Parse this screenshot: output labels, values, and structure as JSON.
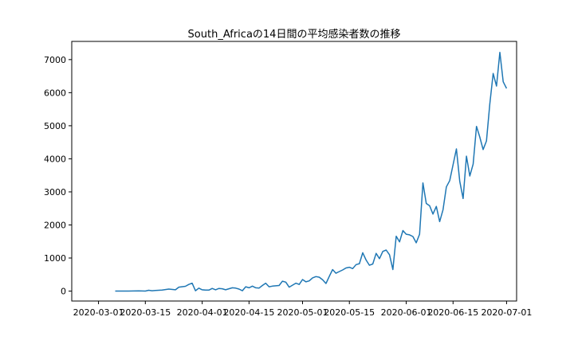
{
  "chart_data": {
    "type": "line",
    "title": "South_Africaの14日間の平均感染者数の推移",
    "xlabel": "",
    "ylabel": "",
    "x_tick_labels": [
      "2020-03-01",
      "2020-03-15",
      "2020-04-01",
      "2020-04-15",
      "2020-05-01",
      "2020-05-15",
      "2020-06-01",
      "2020-06-15",
      "2020-07-01"
    ],
    "y_ticks": [
      0,
      1000,
      2000,
      3000,
      4000,
      5000,
      6000,
      7000
    ],
    "y_tick_labels": [
      "0",
      "1000",
      "2000",
      "3000",
      "4000",
      "5000",
      "6000",
      "7000"
    ],
    "xlim": [
      "2020-02-22",
      "2020-07-04"
    ],
    "ylim": [
      -300,
      7550
    ],
    "grid": false,
    "series": [
      {
        "color": "#1f77b4",
        "points": [
          [
            "2020-03-06",
            0
          ],
          [
            "2020-03-10",
            2
          ],
          [
            "2020-03-13",
            5
          ],
          [
            "2020-03-15",
            0
          ],
          [
            "2020-03-16",
            25
          ],
          [
            "2020-03-17",
            10
          ],
          [
            "2020-03-18",
            20
          ],
          [
            "2020-03-20",
            30
          ],
          [
            "2020-03-22",
            60
          ],
          [
            "2020-03-24",
            40
          ],
          [
            "2020-03-25",
            120
          ],
          [
            "2020-03-27",
            145
          ],
          [
            "2020-03-28",
            200
          ],
          [
            "2020-03-29",
            240
          ],
          [
            "2020-03-30",
            10
          ],
          [
            "2020-03-31",
            90
          ],
          [
            "2020-04-01",
            40
          ],
          [
            "2020-04-02",
            30
          ],
          [
            "2020-04-03",
            30
          ],
          [
            "2020-04-04",
            80
          ],
          [
            "2020-04-05",
            40
          ],
          [
            "2020-04-06",
            80
          ],
          [
            "2020-04-07",
            70
          ],
          [
            "2020-04-08",
            40
          ],
          [
            "2020-04-09",
            70
          ],
          [
            "2020-04-10",
            100
          ],
          [
            "2020-04-11",
            90
          ],
          [
            "2020-04-12",
            60
          ],
          [
            "2020-04-13",
            10
          ],
          [
            "2020-04-14",
            130
          ],
          [
            "2020-04-15",
            100
          ],
          [
            "2020-04-16",
            150
          ],
          [
            "2020-04-17",
            100
          ],
          [
            "2020-04-18",
            90
          ],
          [
            "2020-04-19",
            170
          ],
          [
            "2020-04-20",
            240
          ],
          [
            "2020-04-21",
            130
          ],
          [
            "2020-04-22",
            150
          ],
          [
            "2020-04-23",
            160
          ],
          [
            "2020-04-24",
            170
          ],
          [
            "2020-04-25",
            300
          ],
          [
            "2020-04-26",
            270
          ],
          [
            "2020-04-27",
            120
          ],
          [
            "2020-04-28",
            180
          ],
          [
            "2020-04-29",
            240
          ],
          [
            "2020-04-30",
            200
          ],
          [
            "2020-05-01",
            350
          ],
          [
            "2020-05-02",
            280
          ],
          [
            "2020-05-03",
            310
          ],
          [
            "2020-05-04",
            400
          ],
          [
            "2020-05-05",
            440
          ],
          [
            "2020-05-06",
            420
          ],
          [
            "2020-05-07",
            340
          ],
          [
            "2020-05-08",
            230
          ],
          [
            "2020-05-09",
            450
          ],
          [
            "2020-05-10",
            650
          ],
          [
            "2020-05-11",
            540
          ],
          [
            "2020-05-12",
            590
          ],
          [
            "2020-05-13",
            640
          ],
          [
            "2020-05-14",
            700
          ],
          [
            "2020-05-15",
            720
          ],
          [
            "2020-05-16",
            680
          ],
          [
            "2020-05-17",
            800
          ],
          [
            "2020-05-18",
            830
          ],
          [
            "2020-05-19",
            1160
          ],
          [
            "2020-05-20",
            940
          ],
          [
            "2020-05-21",
            780
          ],
          [
            "2020-05-22",
            820
          ],
          [
            "2020-05-23",
            1140
          ],
          [
            "2020-05-24",
            980
          ],
          [
            "2020-05-25",
            1200
          ],
          [
            "2020-05-26",
            1240
          ],
          [
            "2020-05-27",
            1100
          ],
          [
            "2020-05-28",
            650
          ],
          [
            "2020-05-29",
            1660
          ],
          [
            "2020-05-30",
            1490
          ],
          [
            "2020-05-31",
            1830
          ],
          [
            "2020-06-01",
            1720
          ],
          [
            "2020-06-02",
            1700
          ],
          [
            "2020-06-03",
            1650
          ],
          [
            "2020-06-04",
            1460
          ],
          [
            "2020-06-05",
            1720
          ],
          [
            "2020-06-06",
            3270
          ],
          [
            "2020-06-07",
            2650
          ],
          [
            "2020-06-08",
            2580
          ],
          [
            "2020-06-09",
            2330
          ],
          [
            "2020-06-10",
            2560
          ],
          [
            "2020-06-11",
            2100
          ],
          [
            "2020-06-12",
            2460
          ],
          [
            "2020-06-13",
            3150
          ],
          [
            "2020-06-14",
            3340
          ],
          [
            "2020-06-15",
            3820
          ],
          [
            "2020-06-16",
            4300
          ],
          [
            "2020-06-17",
            3320
          ],
          [
            "2020-06-18",
            2800
          ],
          [
            "2020-06-19",
            4080
          ],
          [
            "2020-06-20",
            3480
          ],
          [
            "2020-06-21",
            3840
          ],
          [
            "2020-06-22",
            4980
          ],
          [
            "2020-06-23",
            4660
          ],
          [
            "2020-06-24",
            4280
          ],
          [
            "2020-06-25",
            4540
          ],
          [
            "2020-06-26",
            5660
          ],
          [
            "2020-06-27",
            6580
          ],
          [
            "2020-06-28",
            6200
          ],
          [
            "2020-06-29",
            7220
          ],
          [
            "2020-06-30",
            6330
          ],
          [
            "2020-07-01",
            6130
          ]
        ]
      }
    ]
  }
}
